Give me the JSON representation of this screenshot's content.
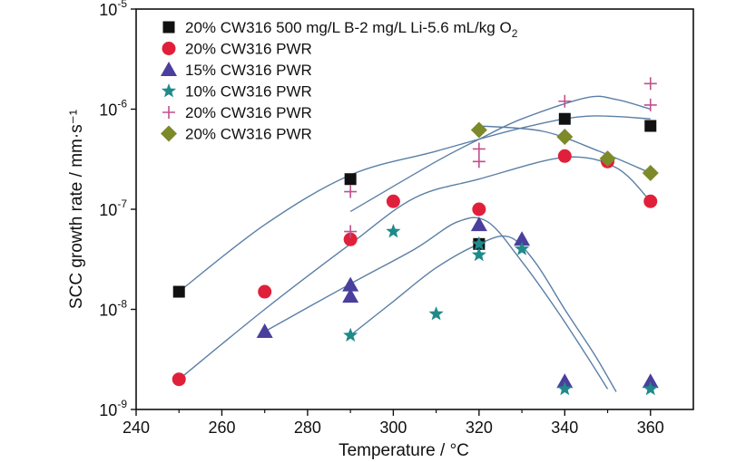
{
  "chart_data": {
    "type": "scatter",
    "xlabel": "Temperature / °C",
    "ylabel": "SCC growth rate / mm·s⁻¹",
    "xlim": [
      240,
      370
    ],
    "ylim": [
      1e-09,
      1e-05
    ],
    "yscale": "log",
    "x_ticks": [
      240,
      260,
      280,
      300,
      320,
      340,
      360
    ],
    "y_ticks": [
      {
        "base": "10",
        "exp": "-9",
        "value": 1e-09
      },
      {
        "base": "10",
        "exp": "-8",
        "value": 1e-08
      },
      {
        "base": "10",
        "exp": "-7",
        "value": 1e-07
      },
      {
        "base": "10",
        "exp": "-6",
        "value": 1e-06
      },
      {
        "base": "10",
        "exp": "-5",
        "value": 1e-05
      }
    ],
    "legend_position": "top-left",
    "series": [
      {
        "name": "20% CW316 500 mg/L B-2 mg/L Li-5.6 mL/kg O",
        "name_sub": "2",
        "marker": "square",
        "color": "#111111",
        "points": [
          [
            250,
            1.5e-08
          ],
          [
            290,
            2e-07
          ],
          [
            320,
            4.5e-08
          ],
          [
            340,
            8e-07
          ],
          [
            360,
            6.8e-07
          ]
        ]
      },
      {
        "name": "20% CW316 PWR",
        "marker": "circle",
        "color": "#e0203a",
        "points": [
          [
            250,
            2e-09
          ],
          [
            270,
            1.5e-08
          ],
          [
            290,
            5e-08
          ],
          [
            300,
            1.2e-07
          ],
          [
            320,
            1e-07
          ],
          [
            340,
            3.4e-07
          ],
          [
            350,
            3e-07
          ],
          [
            360,
            1.2e-07
          ]
        ]
      },
      {
        "name": "15% CW316 PWR",
        "marker": "triangle",
        "color": "#4a3f9c",
        "points": [
          [
            270,
            6e-09
          ],
          [
            290,
            1.75e-08
          ],
          [
            290,
            1.35e-08
          ],
          [
            320,
            7e-08
          ],
          [
            330,
            5e-08
          ],
          [
            340,
            1.9e-09
          ],
          [
            360,
            1.9e-09
          ]
        ]
      },
      {
        "name": "10% CW316 PWR",
        "marker": "star",
        "color": "#1f8a8a",
        "points": [
          [
            290,
            5.5e-09
          ],
          [
            300,
            6e-08
          ],
          [
            310,
            9e-09
          ],
          [
            320,
            4.5e-08
          ],
          [
            320,
            3.5e-08
          ],
          [
            330,
            4e-08
          ],
          [
            340,
            1.6e-09
          ],
          [
            360,
            1.6e-09
          ]
        ]
      },
      {
        "name": "20% CW316 PWR",
        "marker": "plus",
        "color": "#c0508a",
        "points": [
          [
            290,
            1.5e-07
          ],
          [
            290,
            6e-08
          ],
          [
            320,
            4e-07
          ],
          [
            320,
            3e-07
          ],
          [
            340,
            1.2e-06
          ],
          [
            360,
            1.8e-06
          ],
          [
            360,
            1.1e-06
          ]
        ]
      },
      {
        "name": "20% CW316 PWR",
        "marker": "diamond",
        "color": "#7d8a2a",
        "points": [
          [
            320,
            6.2e-07
          ],
          [
            340,
            5.3e-07
          ],
          [
            350,
            3.2e-07
          ],
          [
            360,
            2.3e-07
          ]
        ]
      }
    ],
    "fit_curves": [
      {
        "color": "#5b7fa6",
        "points": [
          [
            250,
            1.5e-08
          ],
          [
            270,
            7e-08
          ],
          [
            290,
            2.2e-07
          ],
          [
            310,
            3.8e-07
          ],
          [
            330,
            6.5e-07
          ],
          [
            345,
            8.5e-07
          ],
          [
            360,
            8e-07
          ]
        ]
      },
      {
        "color": "#5b7fa6",
        "points": [
          [
            250,
            2e-09
          ],
          [
            270,
            1e-08
          ],
          [
            290,
            4.5e-08
          ],
          [
            305,
            1.3e-07
          ],
          [
            320,
            2e-07
          ],
          [
            340,
            3.3e-07
          ],
          [
            352,
            2.6e-07
          ],
          [
            360,
            1.2e-07
          ]
        ]
      },
      {
        "color": "#5b7fa6",
        "points": [
          [
            290,
            9.5e-08
          ],
          [
            310,
            3e-07
          ],
          [
            320,
            5e-07
          ],
          [
            330,
            8e-07
          ],
          [
            345,
            1.3e-06
          ],
          [
            352,
            1.25e-06
          ],
          [
            360,
            1e-06
          ]
        ]
      },
      {
        "color": "#5b7fa6",
        "points": [
          [
            320,
            6.8e-07
          ],
          [
            335,
            6e-07
          ],
          [
            348,
            3.8e-07
          ],
          [
            360,
            2.3e-07
          ]
        ]
      },
      {
        "color": "#5b7fa6",
        "points": [
          [
            270,
            6e-09
          ],
          [
            290,
            1.8e-08
          ],
          [
            305,
            4e-08
          ],
          [
            315,
            7.5e-08
          ],
          [
            322,
            7.5e-08
          ],
          [
            330,
            3e-08
          ],
          [
            338,
            1e-08
          ],
          [
            345,
            3.5e-09
          ],
          [
            350,
            1.6e-09
          ]
        ]
      },
      {
        "color": "#5b7fa6",
        "points": [
          [
            290,
            5.5e-09
          ],
          [
            300,
            1.2e-08
          ],
          [
            310,
            2.6e-08
          ],
          [
            320,
            4.5e-08
          ],
          [
            327,
            5.3e-08
          ],
          [
            333,
            3e-08
          ],
          [
            340,
            1e-08
          ],
          [
            347,
            3.5e-09
          ],
          [
            352,
            1.5e-09
          ]
        ]
      }
    ]
  }
}
